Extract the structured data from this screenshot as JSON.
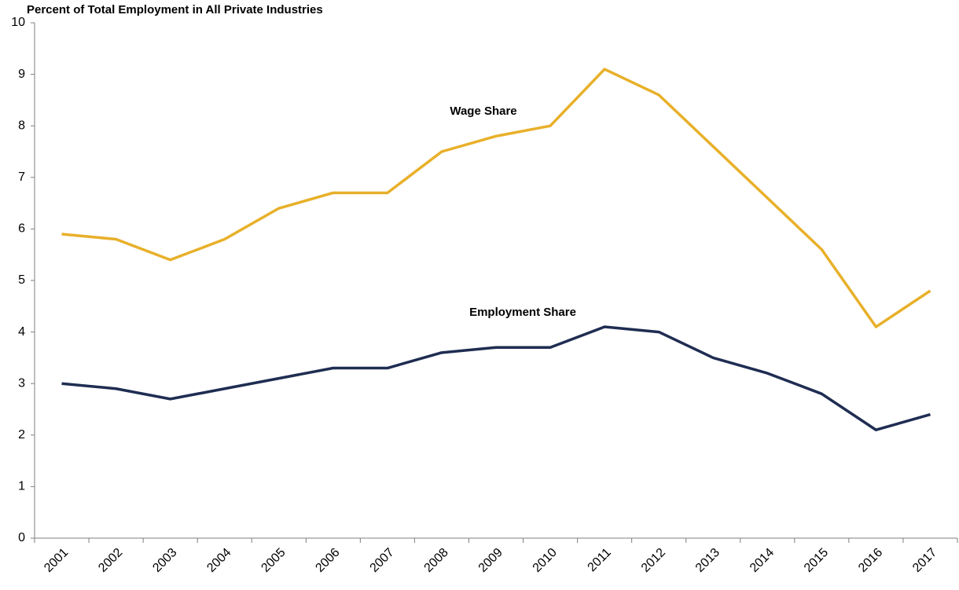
{
  "chart_data": {
    "type": "line",
    "title": "Percent of Total Employment in All Private Industries",
    "categories": [
      "2001",
      "2002",
      "2003",
      "2004",
      "2005",
      "2006",
      "2007",
      "2008",
      "2009",
      "2010",
      "2011",
      "2012",
      "2013",
      "2014",
      "2015",
      "2016",
      "2017"
    ],
    "series": [
      {
        "name": "Wage Share",
        "color": "#e8b02a",
        "values": [
          5.9,
          5.8,
          5.4,
          5.8,
          6.4,
          6.7,
          6.7,
          7.5,
          7.8,
          8.0,
          9.1,
          8.6,
          7.6,
          6.6,
          5.6,
          4.1,
          4.8
        ]
      },
      {
        "name": "Employment Share",
        "color": "#1f2d52",
        "values": [
          3.0,
          2.9,
          2.7,
          2.9,
          3.1,
          3.3,
          3.3,
          3.6,
          3.7,
          3.7,
          4.1,
          4.0,
          3.5,
          3.2,
          2.8,
          2.1,
          2.4
        ]
      }
    ],
    "ylim": [
      0,
      10
    ],
    "yticks": [
      0,
      1,
      2,
      3,
      4,
      5,
      6,
      7,
      8,
      9,
      10
    ],
    "grid": false
  }
}
